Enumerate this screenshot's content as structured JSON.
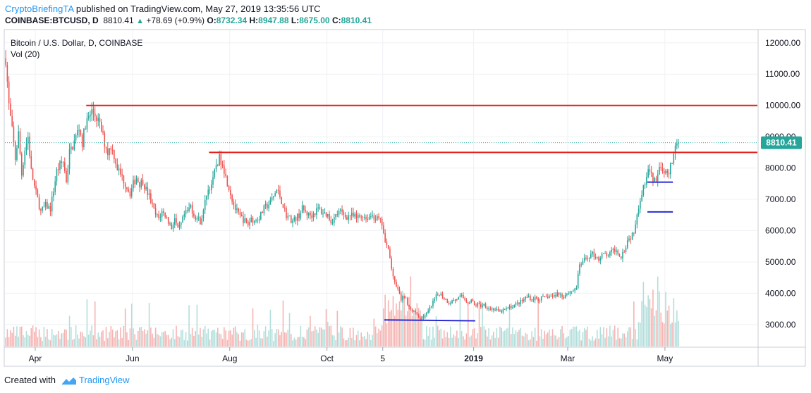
{
  "header": {
    "author": "CryptoBriefingTA",
    "published_text": "published on TradingView.com, May 27, 2019 13:35:56 UTC",
    "symbol": "COINBASE:BTCUSD, D",
    "last": "8810.41",
    "change": "+78.69 (+0.9%)",
    "o_label": "O:",
    "o_value": "8732.34",
    "h_label": "H:",
    "h_value": "8947.88",
    "l_label": "L:",
    "l_value": "8675.00",
    "c_label": "C:",
    "c_value": "8810.41"
  },
  "footer": {
    "created_with": "Created with",
    "brand": "TradingView"
  },
  "colors": {
    "up": "#26a69a",
    "down": "#ef5350",
    "up_vol": "#b2dfdb",
    "down_vol": "#f5b4b2",
    "resistance": "#e0201b",
    "support": "#2b2bd6",
    "price_line": "#26a69a",
    "grid": "#eef1f5"
  },
  "chart_data": {
    "type": "candlestick",
    "title": "Bitcoin / U.S. Dollar, D, COINBASE",
    "indicator": "Vol (20)",
    "ylim": [
      2300,
      12400
    ],
    "yticks": [
      "12000.00",
      "11000.00",
      "10000.00",
      "9000.00",
      "8000.00",
      "7000.00",
      "6000.00",
      "5000.00",
      "4000.00",
      "3000.00"
    ],
    "ytick_values": [
      12000,
      11000,
      10000,
      9000,
      8000,
      7000,
      6000,
      5000,
      4000,
      3000
    ],
    "x_range_days": [
      0,
      472
    ],
    "xticks": [
      {
        "label": "Apr",
        "day": 19
      },
      {
        "label": "Jun",
        "day": 80
      },
      {
        "label": "Aug",
        "day": 141
      },
      {
        "label": "Oct",
        "day": 202
      },
      {
        "label": "5",
        "day": 237
      },
      {
        "label": "2019",
        "day": 294
      },
      {
        "label": "Mar",
        "day": 353
      },
      {
        "label": "May",
        "day": 414
      }
    ],
    "last_price": 8810.41,
    "last_price_label": "8810.41",
    "price_anchors": [
      [
        0,
        11500
      ],
      [
        2,
        10000
      ],
      [
        4,
        9200
      ],
      [
        6,
        8300
      ],
      [
        8,
        9100
      ],
      [
        10,
        7800
      ],
      [
        12,
        8600
      ],
      [
        14,
        9000
      ],
      [
        16,
        7900
      ],
      [
        18,
        7400
      ],
      [
        20,
        7000
      ],
      [
        22,
        6600
      ],
      [
        25,
        6800
      ],
      [
        28,
        6700
      ],
      [
        30,
        7300
      ],
      [
        32,
        7900
      ],
      [
        34,
        8100
      ],
      [
        36,
        8200
      ],
      [
        38,
        7600
      ],
      [
        40,
        8500
      ],
      [
        42,
        8700
      ],
      [
        44,
        9000
      ],
      [
        46,
        9300
      ],
      [
        48,
        8800
      ],
      [
        50,
        9400
      ],
      [
        52,
        9600
      ],
      [
        54,
        9800
      ],
      [
        56,
        9700
      ],
      [
        58,
        9500
      ],
      [
        60,
        9200
      ],
      [
        62,
        8800
      ],
      [
        64,
        8500
      ],
      [
        66,
        8700
      ],
      [
        68,
        8400
      ],
      [
        70,
        8000
      ],
      [
        72,
        7800
      ],
      [
        74,
        7600
      ],
      [
        76,
        7400
      ],
      [
        78,
        7200
      ],
      [
        80,
        7500
      ],
      [
        82,
        7700
      ],
      [
        84,
        7500
      ],
      [
        86,
        7600
      ],
      [
        88,
        7300
      ],
      [
        90,
        7100
      ],
      [
        92,
        6800
      ],
      [
        94,
        6500
      ],
      [
        96,
        6400
      ],
      [
        98,
        6600
      ],
      [
        100,
        6500
      ],
      [
        102,
        6300
      ],
      [
        104,
        6100
      ],
      [
        106,
        6400
      ],
      [
        108,
        6000
      ],
      [
        110,
        6200
      ],
      [
        112,
        6500
      ],
      [
        114,
        6600
      ],
      [
        116,
        6800
      ],
      [
        118,
        6500
      ],
      [
        120,
        6400
      ],
      [
        122,
        6300
      ],
      [
        124,
        6600
      ],
      [
        126,
        7200
      ],
      [
        128,
        7400
      ],
      [
        130,
        7600
      ],
      [
        132,
        8100
      ],
      [
        134,
        8300
      ],
      [
        136,
        8200
      ],
      [
        138,
        7700
      ],
      [
        140,
        7400
      ],
      [
        142,
        7000
      ],
      [
        144,
        6700
      ],
      [
        146,
        6500
      ],
      [
        148,
        6400
      ],
      [
        150,
        6300
      ],
      [
        152,
        6200
      ],
      [
        154,
        6400
      ],
      [
        156,
        6300
      ],
      [
        158,
        6400
      ],
      [
        160,
        6500
      ],
      [
        162,
        6700
      ],
      [
        164,
        6800
      ],
      [
        166,
        6900
      ],
      [
        168,
        7100
      ],
      [
        170,
        7300
      ],
      [
        172,
        7100
      ],
      [
        174,
        6800
      ],
      [
        176,
        6500
      ],
      [
        178,
        6400
      ],
      [
        180,
        6300
      ],
      [
        182,
        6400
      ],
      [
        184,
        6500
      ],
      [
        186,
        6700
      ],
      [
        188,
        6600
      ],
      [
        190,
        6500
      ],
      [
        192,
        6500
      ],
      [
        194,
        6600
      ],
      [
        196,
        6700
      ],
      [
        198,
        6600
      ],
      [
        200,
        6550
      ],
      [
        202,
        6500
      ],
      [
        204,
        6300
      ],
      [
        206,
        6400
      ],
      [
        208,
        6550
      ],
      [
        210,
        6600
      ],
      [
        212,
        6500
      ],
      [
        214,
        6450
      ],
      [
        216,
        6500
      ],
      [
        218,
        6450
      ],
      [
        220,
        6400
      ],
      [
        222,
        6450
      ],
      [
        224,
        6500
      ],
      [
        226,
        6400
      ],
      [
        228,
        6450
      ],
      [
        230,
        6500
      ],
      [
        232,
        6400
      ],
      [
        234,
        6350
      ],
      [
        236,
        6200
      ],
      [
        238,
        5600
      ],
      [
        240,
        5400
      ],
      [
        242,
        4800
      ],
      [
        244,
        4300
      ],
      [
        246,
        4100
      ],
      [
        248,
        3800
      ],
      [
        250,
        3900
      ],
      [
        252,
        3700
      ],
      [
        254,
        3500
      ],
      [
        256,
        3400
      ],
      [
        258,
        3300
      ],
      [
        260,
        3200
      ],
      [
        262,
        3250
      ],
      [
        264,
        3350
      ],
      [
        266,
        3500
      ],
      [
        268,
        3700
      ],
      [
        270,
        3900
      ],
      [
        272,
        4000
      ],
      [
        274,
        3900
      ],
      [
        276,
        3800
      ],
      [
        278,
        3700
      ],
      [
        280,
        3750
      ],
      [
        282,
        3800
      ],
      [
        284,
        3850
      ],
      [
        286,
        3900
      ],
      [
        288,
        3800
      ],
      [
        290,
        3700
      ],
      [
        292,
        3800
      ],
      [
        294,
        3600
      ],
      [
        296,
        3650
      ],
      [
        298,
        3600
      ],
      [
        300,
        3650
      ],
      [
        302,
        3550
      ],
      [
        304,
        3500
      ],
      [
        306,
        3500
      ],
      [
        308,
        3450
      ],
      [
        310,
        3400
      ],
      [
        312,
        3450
      ],
      [
        314,
        3500
      ],
      [
        316,
        3550
      ],
      [
        318,
        3600
      ],
      [
        320,
        3650
      ],
      [
        322,
        3700
      ],
      [
        324,
        3750
      ],
      [
        326,
        3850
      ],
      [
        328,
        3900
      ],
      [
        330,
        3800
      ],
      [
        332,
        3850
      ],
      [
        334,
        3800
      ],
      [
        336,
        3850
      ],
      [
        338,
        3850
      ],
      [
        340,
        3900
      ],
      [
        342,
        3900
      ],
      [
        344,
        3900
      ],
      [
        346,
        4000
      ],
      [
        348,
        3950
      ],
      [
        350,
        3900
      ],
      [
        352,
        4000
      ],
      [
        354,
        4050
      ],
      [
        356,
        4100
      ],
      [
        358,
        4200
      ],
      [
        360,
        4900
      ],
      [
        362,
        5000
      ],
      [
        364,
        5100
      ],
      [
        366,
        5200
      ],
      [
        368,
        5250
      ],
      [
        370,
        5200
      ],
      [
        372,
        5100
      ],
      [
        374,
        5200
      ],
      [
        376,
        5250
      ],
      [
        378,
        5200
      ],
      [
        380,
        5300
      ],
      [
        382,
        5400
      ],
      [
        384,
        5300
      ],
      [
        386,
        5200
      ],
      [
        388,
        5400
      ],
      [
        390,
        5700
      ],
      [
        392,
        5800
      ],
      [
        394,
        6000
      ],
      [
        396,
        6600
      ],
      [
        398,
        7000
      ],
      [
        400,
        7400
      ],
      [
        402,
        7800
      ],
      [
        404,
        7900
      ],
      [
        406,
        7600
      ],
      [
        408,
        7700
      ],
      [
        410,
        7900
      ],
      [
        412,
        8000
      ],
      [
        414,
        7800
      ],
      [
        416,
        7900
      ],
      [
        418,
        8200
      ],
      [
        420,
        8700
      ],
      [
        422,
        8810
      ]
    ],
    "resistance_lines": [
      {
        "from_day": 51,
        "to_day": 472,
        "price": 10000
      },
      {
        "from_day": 128,
        "to_day": 472,
        "price": 8500
      }
    ],
    "support_lines": [
      {
        "from_day": 238,
        "to_day": 295,
        "price": 3150,
        "end_price": 3120
      },
      {
        "from_day": 403,
        "to_day": 419,
        "price": 7550
      },
      {
        "from_day": 403,
        "to_day": 419,
        "price": 6600
      }
    ]
  }
}
